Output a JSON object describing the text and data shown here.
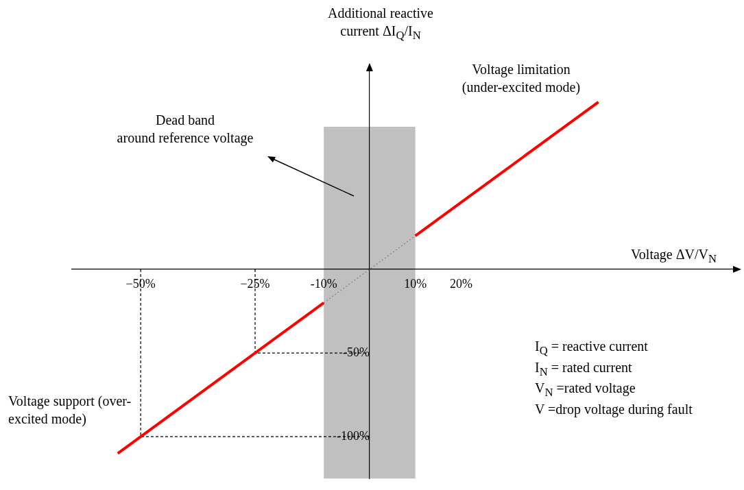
{
  "chart_data": {
    "type": "line",
    "xlabel": "Voltage ΔV/V$_{N}$",
    "ylabel": "Additional reactive current ΔI$_{Q}$/I$_{N}$",
    "xlim": [
      -65,
      80
    ],
    "ylim": [
      -125,
      120
    ],
    "xticks": [
      {
        "value": -50,
        "label": "−50%"
      },
      {
        "value": -25,
        "label": "−25%"
      },
      {
        "value": -10,
        "label": "-10%"
      },
      {
        "value": 10,
        "label": "10%"
      },
      {
        "value": 20,
        "label": "20%"
      }
    ],
    "yticks": [
      {
        "value": -50,
        "label": "-50%"
      },
      {
        "value": -100,
        "label": "-100%"
      }
    ],
    "marker": "none",
    "series": [
      {
        "color": "#ff0000",
        "x": [
          -55,
          -10
        ],
        "values": [
          -110,
          -20
        ]
      },
      {
        "color": "#ff0000",
        "x": [
          10,
          50
        ],
        "values": [
          20,
          100
        ]
      },
      {
        "color": "#808080",
        "line_style": "dotted",
        "x": [
          -10,
          10
        ],
        "values": [
          -20,
          20
        ]
      },
      {
        "color": "#000000",
        "line_style": "dashed",
        "x": [
          -50,
          -50,
          0
        ],
        "values": [
          0,
          -100,
          -100
        ]
      },
      {
        "color": "#000000",
        "line_style": "dashed",
        "x": [
          -25,
          -25,
          0
        ],
        "values": [
          0,
          -50,
          -50
        ]
      }
    ],
    "bands": [
      {
        "axis": "x",
        "from": -10,
        "to": 10,
        "color": "#c0c0c0"
      }
    ],
    "annotations": [
      "Dead band\naround reference voltage",
      "Voltage limitation\n(under-excited mode)",
      "Voltage support (over-\nexcited mode)",
      "I$_{Q}$ = reactive current\nI$_{N}$ = rated current\nV$_{N}$ =rated voltage\nV =drop voltage during fault"
    ]
  }
}
